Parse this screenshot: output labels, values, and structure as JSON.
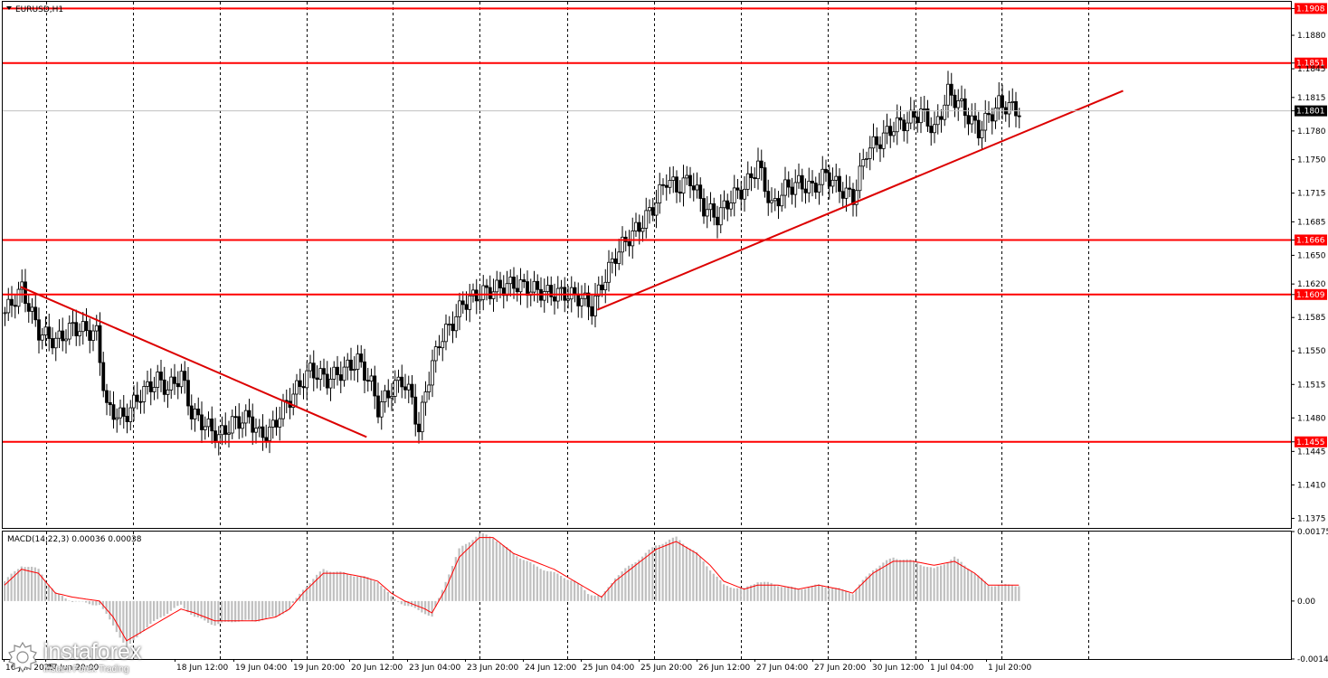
{
  "symbol_title": "EURUSD,H1",
  "macd_label": "MACD(14,22,3) 0.00036 0.00038",
  "colors": {
    "level": "#ff0000",
    "trend": "#dc0000",
    "candle": "#000000",
    "grid": "#000000",
    "hist": "#c0c0c0",
    "signal": "#ff0000",
    "current_price_tag": "#000000"
  },
  "logo": {
    "name": "instaforex",
    "tagline": "Instant Forex Trading"
  },
  "chart_data": [
    {
      "type": "candlestick",
      "title": "EURUSD,H1",
      "ylim": [
        1.1365,
        1.1915
      ],
      "y_ticks": [
        "1.1908",
        "1.1880",
        "1.1851",
        "1.1845",
        "1.1815",
        "1.1801",
        "1.1780",
        "1.1750",
        "1.1715",
        "1.1685",
        "1.1666",
        "1.1650",
        "1.1620",
        "1.1609",
        "1.1585",
        "1.1550",
        "1.1515",
        "1.1480",
        "1.1455",
        "1.1445",
        "1.1410",
        "1.1375"
      ],
      "x_labels": [
        "16 Jun 2025",
        "17 Jun 20:00",
        "18 Jun 12:00",
        "19 Jun 04:00",
        "19 Jun 20:00",
        "20 Jun 12:00",
        "23 Jun 04:00",
        "23 Jun 20:00",
        "24 Jun 12:00",
        "25 Jun 04:00",
        "25 Jun 20:00",
        "26 Jun 12:00",
        "27 Jun 04:00",
        "27 Jun 20:00",
        "30 Jun 12:00",
        "1 Jul 04:00",
        "1 Jul 20:00"
      ],
      "horizontal_levels": [
        1.1908,
        1.1851,
        1.1666,
        1.1609,
        1.1455
      ],
      "level_labels": [
        "1.1908",
        "1.1851",
        "1.1666",
        "1.1609",
        "1.1455"
      ],
      "current_price": 1.1801,
      "current_price_label": "1.1801",
      "close_path": [
        [
          0,
          1.159
        ],
        [
          5,
          1.1615
        ],
        [
          10,
          1.157
        ],
        [
          15,
          1.156
        ],
        [
          20,
          1.1575
        ],
        [
          27,
          1.1568
        ],
        [
          30,
          1.149
        ],
        [
          35,
          1.148
        ],
        [
          40,
          1.1505
        ],
        [
          45,
          1.152
        ],
        [
          48,
          1.151
        ],
        [
          52,
          1.1525
        ],
        [
          55,
          1.1485
        ],
        [
          60,
          1.147
        ],
        [
          63,
          1.146
        ],
        [
          67,
          1.1475
        ],
        [
          72,
          1.148
        ],
        [
          75,
          1.1462
        ],
        [
          78,
          1.1465
        ],
        [
          82,
          1.149
        ],
        [
          86,
          1.151
        ],
        [
          90,
          1.153
        ],
        [
          95,
          1.152
        ],
        [
          100,
          1.153
        ],
        [
          104,
          1.154
        ],
        [
          108,
          1.1515
        ],
        [
          110,
          1.149
        ],
        [
          114,
          1.151
        ],
        [
          117,
          1.152
        ],
        [
          120,
          1.15
        ],
        [
          122,
          1.1465
        ],
        [
          124,
          1.151
        ],
        [
          128,
          1.156
        ],
        [
          132,
          1.158
        ],
        [
          135,
          1.16
        ],
        [
          140,
          1.161
        ],
        [
          145,
          1.1615
        ],
        [
          150,
          1.162
        ],
        [
          155,
          1.1615
        ],
        [
          160,
          1.161
        ],
        [
          165,
          1.161
        ],
        [
          170,
          1.1605
        ],
        [
          173,
          1.1595
        ],
        [
          176,
          1.162
        ],
        [
          180,
          1.165
        ],
        [
          183,
          1.1665
        ],
        [
          187,
          1.168
        ],
        [
          191,
          1.17
        ],
        [
          195,
          1.173
        ],
        [
          198,
          1.172
        ],
        [
          202,
          1.173
        ],
        [
          206,
          1.17
        ],
        [
          210,
          1.169
        ],
        [
          214,
          1.171
        ],
        [
          218,
          1.172
        ],
        [
          222,
          1.1745
        ],
        [
          226,
          1.17
        ],
        [
          230,
          1.172
        ],
        [
          234,
          1.1725
        ],
        [
          238,
          1.172
        ],
        [
          242,
          1.1735
        ],
        [
          246,
          1.172
        ],
        [
          250,
          1.171
        ],
        [
          254,
          1.176
        ],
        [
          258,
          1.177
        ],
        [
          262,
          1.1785
        ],
        [
          266,
          1.179
        ],
        [
          270,
          1.18
        ],
        [
          274,
          1.178
        ],
        [
          278,
          1.182
        ],
        [
          281,
          1.181
        ],
        [
          284,
          1.1795
        ],
        [
          287,
          1.178
        ],
        [
          290,
          1.1795
        ],
        [
          293,
          1.1808
        ],
        [
          296,
          1.1805
        ],
        [
          299,
          1.1801
        ]
      ],
      "trendlines": [
        {
          "from": [
            5,
            1.1617
          ],
          "to": [
            107,
            1.146
          ]
        },
        {
          "from": [
            175,
            1.1593
          ],
          "to": [
            330,
            1.1822
          ]
        }
      ]
    },
    {
      "type": "bar",
      "title": "MACD(14,22,3) 0.00036 0.00038",
      "ylim": [
        -0.00146,
        0.00175
      ],
      "y_ticks": [
        "0.00175",
        "0.00",
        "-0.00146"
      ],
      "macd_path": [
        [
          0,
          0.0005
        ],
        [
          5,
          0.0009
        ],
        [
          10,
          0.0008
        ],
        [
          15,
          0.0002
        ],
        [
          20,
          0.0
        ],
        [
          28,
          -0.0001
        ],
        [
          32,
          -0.0006
        ],
        [
          36,
          -0.0012
        ],
        [
          40,
          -0.0008
        ],
        [
          46,
          -0.0004
        ],
        [
          52,
          -0.0001
        ],
        [
          56,
          -0.0004
        ],
        [
          62,
          -0.0006
        ],
        [
          68,
          -0.0005
        ],
        [
          74,
          -0.0005
        ],
        [
          80,
          -0.0004
        ],
        [
          84,
          -0.0002
        ],
        [
          88,
          0.0003
        ],
        [
          94,
          0.0008
        ],
        [
          100,
          0.0007
        ],
        [
          106,
          0.0006
        ],
        [
          110,
          0.0005
        ],
        [
          114,
          0.0001
        ],
        [
          118,
          -0.0001
        ],
        [
          124,
          -0.0003
        ],
        [
          126,
          -0.0004
        ],
        [
          130,
          0.0005
        ],
        [
          134,
          0.0013
        ],
        [
          140,
          0.0017
        ],
        [
          144,
          0.0016
        ],
        [
          150,
          0.0012
        ],
        [
          156,
          0.0009
        ],
        [
          162,
          0.0007
        ],
        [
          168,
          0.0005
        ],
        [
          172,
          0.0002
        ],
        [
          176,
          0.0001
        ],
        [
          180,
          0.0006
        ],
        [
          186,
          0.001
        ],
        [
          192,
          0.0014
        ],
        [
          198,
          0.0016
        ],
        [
          204,
          0.0012
        ],
        [
          208,
          0.0008
        ],
        [
          212,
          0.0004
        ],
        [
          218,
          0.0003
        ],
        [
          222,
          0.0005
        ],
        [
          228,
          0.0004
        ],
        [
          234,
          0.0003
        ],
        [
          240,
          0.0004
        ],
        [
          246,
          0.0003
        ],
        [
          250,
          0.0002
        ],
        [
          256,
          0.0008
        ],
        [
          262,
          0.0011
        ],
        [
          268,
          0.001
        ],
        [
          274,
          0.0008
        ],
        [
          280,
          0.0011
        ],
        [
          286,
          0.0007
        ],
        [
          290,
          0.0004
        ],
        [
          294,
          0.0004
        ],
        [
          299,
          0.0004
        ]
      ],
      "signal_path": [
        [
          0,
          0.0004
        ],
        [
          5,
          0.0008
        ],
        [
          10,
          0.0007
        ],
        [
          15,
          0.0002
        ],
        [
          20,
          0.0001
        ],
        [
          28,
          0.0
        ],
        [
          32,
          -0.0004
        ],
        [
          36,
          -0.001
        ],
        [
          40,
          -0.0008
        ],
        [
          46,
          -0.0005
        ],
        [
          52,
          -0.0002
        ],
        [
          56,
          -0.0003
        ],
        [
          62,
          -0.0005
        ],
        [
          68,
          -0.0005
        ],
        [
          74,
          -0.0005
        ],
        [
          80,
          -0.0004
        ],
        [
          84,
          -0.0002
        ],
        [
          88,
          0.0002
        ],
        [
          94,
          0.0007
        ],
        [
          100,
          0.0007
        ],
        [
          106,
          0.0006
        ],
        [
          110,
          0.0005
        ],
        [
          114,
          0.0002
        ],
        [
          118,
          0.0
        ],
        [
          124,
          -0.0002
        ],
        [
          126,
          -0.0003
        ],
        [
          130,
          0.0003
        ],
        [
          134,
          0.0011
        ],
        [
          140,
          0.0016
        ],
        [
          144,
          0.0016
        ],
        [
          150,
          0.0012
        ],
        [
          156,
          0.001
        ],
        [
          162,
          0.0008
        ],
        [
          168,
          0.0005
        ],
        [
          172,
          0.0003
        ],
        [
          176,
          0.0001
        ],
        [
          180,
          0.0005
        ],
        [
          186,
          0.0009
        ],
        [
          192,
          0.0013
        ],
        [
          198,
          0.0015
        ],
        [
          204,
          0.0012
        ],
        [
          208,
          0.0009
        ],
        [
          212,
          0.0005
        ],
        [
          218,
          0.0003
        ],
        [
          222,
          0.0004
        ],
        [
          228,
          0.0004
        ],
        [
          234,
          0.0003
        ],
        [
          240,
          0.0004
        ],
        [
          246,
          0.0003
        ],
        [
          250,
          0.0002
        ],
        [
          256,
          0.0007
        ],
        [
          262,
          0.001
        ],
        [
          268,
          0.001
        ],
        [
          274,
          0.0009
        ],
        [
          280,
          0.001
        ],
        [
          286,
          0.0007
        ],
        [
          290,
          0.0004
        ],
        [
          294,
          0.0004
        ],
        [
          299,
          0.0004
        ]
      ]
    }
  ]
}
